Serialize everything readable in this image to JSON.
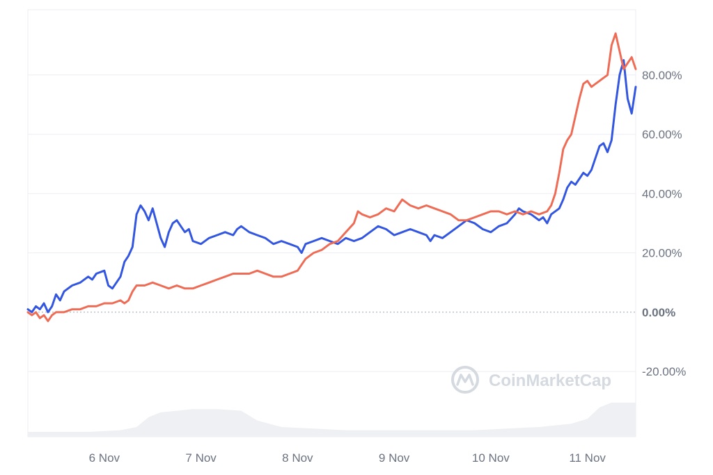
{
  "chart_data": {
    "type": "line",
    "title": "",
    "xlabel": "",
    "ylabel": "",
    "x_ticks": [
      "6 Nov",
      "7 Nov",
      "8 Nov",
      "9 Nov",
      "10 Nov",
      "11 Nov"
    ],
    "y_ticks": [
      "80.00%",
      "60.00%",
      "40.00%",
      "20.00%",
      "0.00%",
      "-20.00%"
    ],
    "ylim": [
      -42,
      102
    ],
    "xlim": [
      "2023-11-05T05:00",
      "2023-11-11T12:00"
    ],
    "grid": true,
    "legend": "none",
    "watermark": "CoinMarketCap",
    "colors": {
      "series_blue": "#3356e0",
      "series_orange": "#ee6c55",
      "grid": "#eceef2",
      "zero_line": "#9aa1ad",
      "volume_fill": "#eef0f3",
      "watermark": "#d5d9e0",
      "tick_text": "#6b7280"
    },
    "series": [
      {
        "color": "#3356e0",
        "points": [
          [
            "2023-11-05T05:00",
            1
          ],
          [
            "2023-11-05T06:00",
            0
          ],
          [
            "2023-11-05T07:00",
            2
          ],
          [
            "2023-11-05T08:00",
            1
          ],
          [
            "2023-11-05T09:00",
            3
          ],
          [
            "2023-11-05T10:00",
            0
          ],
          [
            "2023-11-05T11:00",
            2
          ],
          [
            "2023-11-05T12:00",
            6
          ],
          [
            "2023-11-05T13:00",
            4
          ],
          [
            "2023-11-05T14:00",
            7
          ],
          [
            "2023-11-05T16:00",
            9
          ],
          [
            "2023-11-05T18:00",
            10
          ],
          [
            "2023-11-05T20:00",
            12
          ],
          [
            "2023-11-05T21:00",
            11
          ],
          [
            "2023-11-05T22:00",
            13
          ],
          [
            "2023-11-06T00:00",
            14
          ],
          [
            "2023-11-06T01:00",
            9
          ],
          [
            "2023-11-06T02:00",
            8
          ],
          [
            "2023-11-06T03:00",
            10
          ],
          [
            "2023-11-06T04:00",
            12
          ],
          [
            "2023-11-06T05:00",
            17
          ],
          [
            "2023-11-06T06:00",
            19
          ],
          [
            "2023-11-06T07:00",
            22
          ],
          [
            "2023-11-06T08:00",
            33
          ],
          [
            "2023-11-06T09:00",
            36
          ],
          [
            "2023-11-06T10:00",
            34
          ],
          [
            "2023-11-06T11:00",
            31
          ],
          [
            "2023-11-06T12:00",
            35
          ],
          [
            "2023-11-06T13:00",
            30
          ],
          [
            "2023-11-06T14:00",
            25
          ],
          [
            "2023-11-06T15:00",
            22
          ],
          [
            "2023-11-06T16:00",
            27
          ],
          [
            "2023-11-06T17:00",
            30
          ],
          [
            "2023-11-06T18:00",
            31
          ],
          [
            "2023-11-06T19:00",
            29
          ],
          [
            "2023-11-06T20:00",
            27
          ],
          [
            "2023-11-06T21:00",
            28
          ],
          [
            "2023-11-06T22:00",
            24
          ],
          [
            "2023-11-07T00:00",
            23
          ],
          [
            "2023-11-07T02:00",
            25
          ],
          [
            "2023-11-07T04:00",
            26
          ],
          [
            "2023-11-07T06:00",
            27
          ],
          [
            "2023-11-07T08:00",
            26
          ],
          [
            "2023-11-07T09:00",
            28
          ],
          [
            "2023-11-07T10:00",
            29
          ],
          [
            "2023-11-07T12:00",
            27
          ],
          [
            "2023-11-07T14:00",
            26
          ],
          [
            "2023-11-07T16:00",
            25
          ],
          [
            "2023-11-07T18:00",
            23
          ],
          [
            "2023-11-07T20:00",
            24
          ],
          [
            "2023-11-07T22:00",
            23
          ],
          [
            "2023-11-08T00:00",
            22
          ],
          [
            "2023-11-08T01:00",
            20
          ],
          [
            "2023-11-08T02:00",
            23
          ],
          [
            "2023-11-08T04:00",
            24
          ],
          [
            "2023-11-08T06:00",
            25
          ],
          [
            "2023-11-08T08:00",
            24
          ],
          [
            "2023-11-08T10:00",
            23
          ],
          [
            "2023-11-08T12:00",
            25
          ],
          [
            "2023-11-08T14:00",
            24
          ],
          [
            "2023-11-08T16:00",
            25
          ],
          [
            "2023-11-08T18:00",
            27
          ],
          [
            "2023-11-08T20:00",
            29
          ],
          [
            "2023-11-08T22:00",
            28
          ],
          [
            "2023-11-09T00:00",
            26
          ],
          [
            "2023-11-09T02:00",
            27
          ],
          [
            "2023-11-09T04:00",
            28
          ],
          [
            "2023-11-09T06:00",
            27
          ],
          [
            "2023-11-09T08:00",
            26
          ],
          [
            "2023-11-09T09:00",
            24
          ],
          [
            "2023-11-09T10:00",
            26
          ],
          [
            "2023-11-09T12:00",
            25
          ],
          [
            "2023-11-09T14:00",
            27
          ],
          [
            "2023-11-09T16:00",
            29
          ],
          [
            "2023-11-09T18:00",
            31
          ],
          [
            "2023-11-09T20:00",
            30
          ],
          [
            "2023-11-09T22:00",
            28
          ],
          [
            "2023-11-10T00:00",
            27
          ],
          [
            "2023-11-10T02:00",
            29
          ],
          [
            "2023-11-10T04:00",
            30
          ],
          [
            "2023-11-10T06:00",
            33
          ],
          [
            "2023-11-10T07:00",
            35
          ],
          [
            "2023-11-10T08:00",
            34
          ],
          [
            "2023-11-10T10:00",
            33
          ],
          [
            "2023-11-10T12:00",
            31
          ],
          [
            "2023-11-10T13:00",
            32
          ],
          [
            "2023-11-10T14:00",
            30
          ],
          [
            "2023-11-10T15:00",
            33
          ],
          [
            "2023-11-10T16:00",
            34
          ],
          [
            "2023-11-10T17:00",
            35
          ],
          [
            "2023-11-10T18:00",
            38
          ],
          [
            "2023-11-10T19:00",
            42
          ],
          [
            "2023-11-10T20:00",
            44
          ],
          [
            "2023-11-10T21:00",
            43
          ],
          [
            "2023-11-10T22:00",
            45
          ],
          [
            "2023-11-10T23:00",
            47
          ],
          [
            "2023-11-11T00:00",
            46
          ],
          [
            "2023-11-11T01:00",
            48
          ],
          [
            "2023-11-11T02:00",
            52
          ],
          [
            "2023-11-11T03:00",
            56
          ],
          [
            "2023-11-11T04:00",
            57
          ],
          [
            "2023-11-11T05:00",
            54
          ],
          [
            "2023-11-11T06:00",
            58
          ],
          [
            "2023-11-11T07:00",
            70
          ],
          [
            "2023-11-11T08:00",
            80
          ],
          [
            "2023-11-11T09:00",
            85
          ],
          [
            "2023-11-11T10:00",
            72
          ],
          [
            "2023-11-11T11:00",
            67
          ],
          [
            "2023-11-11T12:00",
            76
          ]
        ]
      },
      {
        "color": "#ee6c55",
        "points": [
          [
            "2023-11-05T05:00",
            0
          ],
          [
            "2023-11-05T06:00",
            -1
          ],
          [
            "2023-11-05T07:00",
            0
          ],
          [
            "2023-11-05T08:00",
            -2
          ],
          [
            "2023-11-05T09:00",
            -1
          ],
          [
            "2023-11-05T10:00",
            -3
          ],
          [
            "2023-11-05T11:00",
            -1
          ],
          [
            "2023-11-05T12:00",
            0
          ],
          [
            "2023-11-05T14:00",
            0
          ],
          [
            "2023-11-05T16:00",
            1
          ],
          [
            "2023-11-05T18:00",
            1
          ],
          [
            "2023-11-05T20:00",
            2
          ],
          [
            "2023-11-05T22:00",
            2
          ],
          [
            "2023-11-06T00:00",
            3
          ],
          [
            "2023-11-06T02:00",
            3
          ],
          [
            "2023-11-06T04:00",
            4
          ],
          [
            "2023-11-06T05:00",
            3
          ],
          [
            "2023-11-06T06:00",
            4
          ],
          [
            "2023-11-06T07:00",
            7
          ],
          [
            "2023-11-06T08:00",
            9
          ],
          [
            "2023-11-06T10:00",
            9
          ],
          [
            "2023-11-06T12:00",
            10
          ],
          [
            "2023-11-06T14:00",
            9
          ],
          [
            "2023-11-06T16:00",
            8
          ],
          [
            "2023-11-06T18:00",
            9
          ],
          [
            "2023-11-06T20:00",
            8
          ],
          [
            "2023-11-06T22:00",
            8
          ],
          [
            "2023-11-07T00:00",
            9
          ],
          [
            "2023-11-07T02:00",
            10
          ],
          [
            "2023-11-07T04:00",
            11
          ],
          [
            "2023-11-07T06:00",
            12
          ],
          [
            "2023-11-07T08:00",
            13
          ],
          [
            "2023-11-07T10:00",
            13
          ],
          [
            "2023-11-07T12:00",
            13
          ],
          [
            "2023-11-07T14:00",
            14
          ],
          [
            "2023-11-07T16:00",
            13
          ],
          [
            "2023-11-07T18:00",
            12
          ],
          [
            "2023-11-07T20:00",
            12
          ],
          [
            "2023-11-07T22:00",
            13
          ],
          [
            "2023-11-08T00:00",
            14
          ],
          [
            "2023-11-08T01:00",
            16
          ],
          [
            "2023-11-08T02:00",
            18
          ],
          [
            "2023-11-08T04:00",
            20
          ],
          [
            "2023-11-08T06:00",
            21
          ],
          [
            "2023-11-08T08:00",
            23
          ],
          [
            "2023-11-08T10:00",
            24
          ],
          [
            "2023-11-08T12:00",
            27
          ],
          [
            "2023-11-08T14:00",
            30
          ],
          [
            "2023-11-08T15:00",
            34
          ],
          [
            "2023-11-08T16:00",
            33
          ],
          [
            "2023-11-08T18:00",
            32
          ],
          [
            "2023-11-08T20:00",
            33
          ],
          [
            "2023-11-08T22:00",
            35
          ],
          [
            "2023-11-09T00:00",
            34
          ],
          [
            "2023-11-09T01:00",
            36
          ],
          [
            "2023-11-09T02:00",
            38
          ],
          [
            "2023-11-09T04:00",
            36
          ],
          [
            "2023-11-09T06:00",
            35
          ],
          [
            "2023-11-09T08:00",
            36
          ],
          [
            "2023-11-09T10:00",
            35
          ],
          [
            "2023-11-09T12:00",
            34
          ],
          [
            "2023-11-09T14:00",
            33
          ],
          [
            "2023-11-09T16:00",
            31
          ],
          [
            "2023-11-09T18:00",
            31
          ],
          [
            "2023-11-09T20:00",
            32
          ],
          [
            "2023-11-09T22:00",
            33
          ],
          [
            "2023-11-10T00:00",
            34
          ],
          [
            "2023-11-10T02:00",
            34
          ],
          [
            "2023-11-10T04:00",
            33
          ],
          [
            "2023-11-10T06:00",
            34
          ],
          [
            "2023-11-10T08:00",
            33
          ],
          [
            "2023-11-10T10:00",
            34
          ],
          [
            "2023-11-10T12:00",
            33
          ],
          [
            "2023-11-10T14:00",
            34
          ],
          [
            "2023-11-10T15:00",
            36
          ],
          [
            "2023-11-10T16:00",
            40
          ],
          [
            "2023-11-10T17:00",
            47
          ],
          [
            "2023-11-10T18:00",
            55
          ],
          [
            "2023-11-10T19:00",
            58
          ],
          [
            "2023-11-10T20:00",
            60
          ],
          [
            "2023-11-10T21:00",
            66
          ],
          [
            "2023-11-10T22:00",
            72
          ],
          [
            "2023-11-10T23:00",
            77
          ],
          [
            "2023-11-11T00:00",
            78
          ],
          [
            "2023-11-11T01:00",
            76
          ],
          [
            "2023-11-11T02:00",
            77
          ],
          [
            "2023-11-11T03:00",
            78
          ],
          [
            "2023-11-11T04:00",
            79
          ],
          [
            "2023-11-11T05:00",
            80
          ],
          [
            "2023-11-11T06:00",
            90
          ],
          [
            "2023-11-11T07:00",
            94
          ],
          [
            "2023-11-11T08:00",
            88
          ],
          [
            "2023-11-11T09:00",
            82
          ],
          [
            "2023-11-11T10:00",
            84
          ],
          [
            "2023-11-11T11:00",
            86
          ],
          [
            "2023-11-11T12:00",
            82
          ]
        ]
      }
    ],
    "volume": [
      [
        "2023-11-05T05:00",
        3
      ],
      [
        "2023-11-05T12:00",
        3
      ],
      [
        "2023-11-05T20:00",
        3
      ],
      [
        "2023-11-06T04:00",
        4
      ],
      [
        "2023-11-06T08:00",
        6
      ],
      [
        "2023-11-06T11:00",
        12
      ],
      [
        "2023-11-06T14:00",
        15
      ],
      [
        "2023-11-06T18:00",
        16
      ],
      [
        "2023-11-06T22:00",
        17
      ],
      [
        "2023-11-07T04:00",
        17
      ],
      [
        "2023-11-07T10:00",
        16
      ],
      [
        "2023-11-07T14:00",
        10
      ],
      [
        "2023-11-07T20:00",
        6
      ],
      [
        "2023-11-08T04:00",
        5
      ],
      [
        "2023-11-08T12:00",
        4
      ],
      [
        "2023-11-08T20:00",
        4
      ],
      [
        "2023-11-09T04:00",
        4
      ],
      [
        "2023-11-09T12:00",
        4
      ],
      [
        "2023-11-09T20:00",
        4
      ],
      [
        "2023-11-10T04:00",
        5
      ],
      [
        "2023-11-10T12:00",
        6
      ],
      [
        "2023-11-10T20:00",
        8
      ],
      [
        "2023-11-11T00:00",
        11
      ],
      [
        "2023-11-11T03:00",
        18
      ],
      [
        "2023-11-11T06:00",
        21
      ],
      [
        "2023-11-11T12:00",
        21
      ]
    ]
  }
}
